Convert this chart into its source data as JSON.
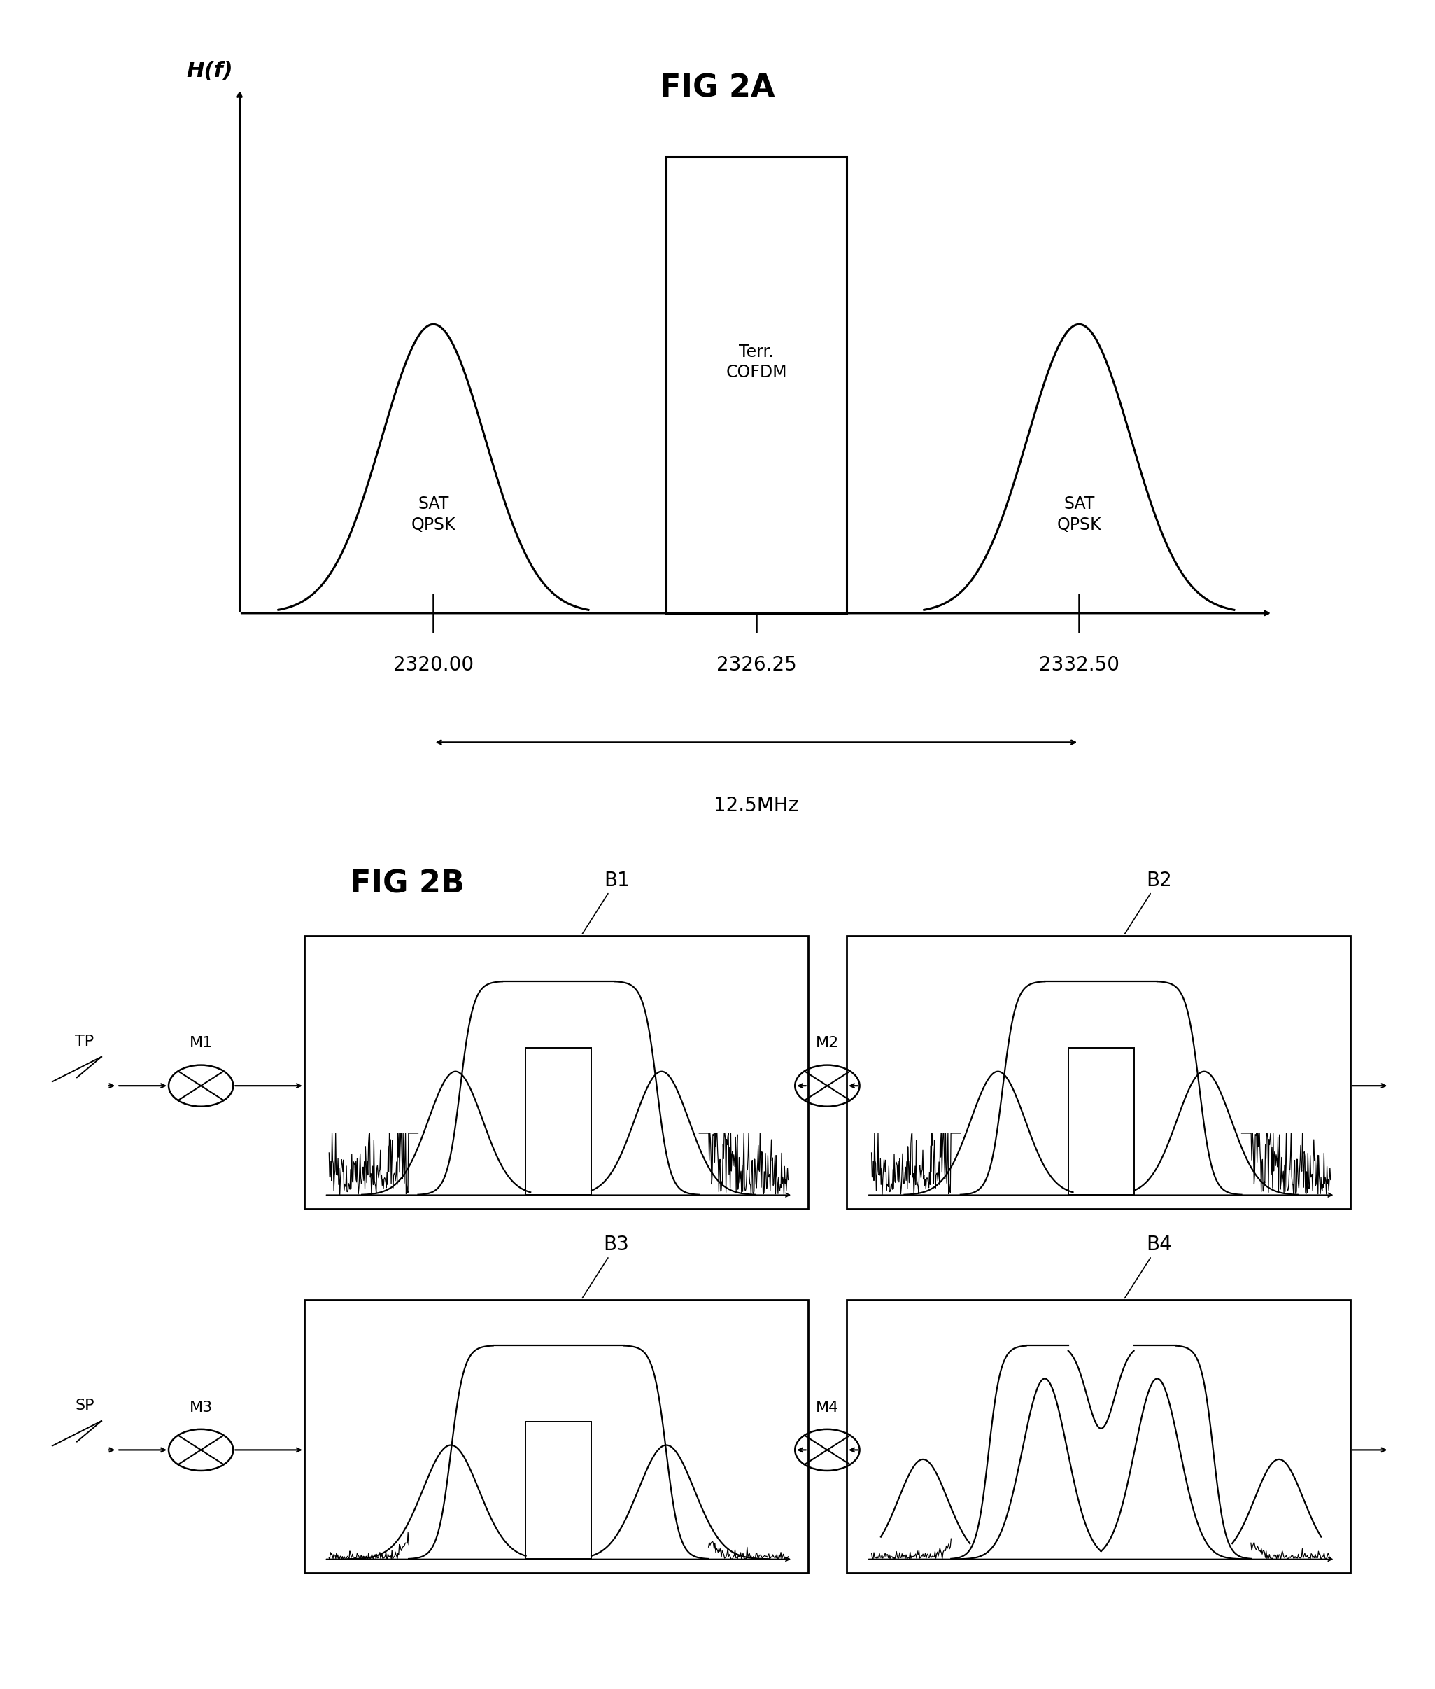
{
  "fig2a_title": "FIG 2A",
  "fig2b_title": "FIG 2B",
  "ylabel_2a": "H(f)",
  "freq_labels": [
    "2320.00",
    "2326.25",
    "2332.50"
  ],
  "bandwidth_label": "12.5MHz",
  "sat_qpsk_label": "SAT\nQPSK",
  "terr_cofdm_label": "Terr.\nCOFDM",
  "labels_B": [
    "B1",
    "B2",
    "B3",
    "B4"
  ],
  "labels_M": [
    "M1",
    "M2",
    "M3",
    "M4"
  ],
  "label_TP": "TP",
  "label_SP": "SP",
  "bg_color": "#ffffff",
  "line_color": "#000000",
  "fontsize_title": 32,
  "fontsize_label": 18,
  "fontsize_freq": 20
}
